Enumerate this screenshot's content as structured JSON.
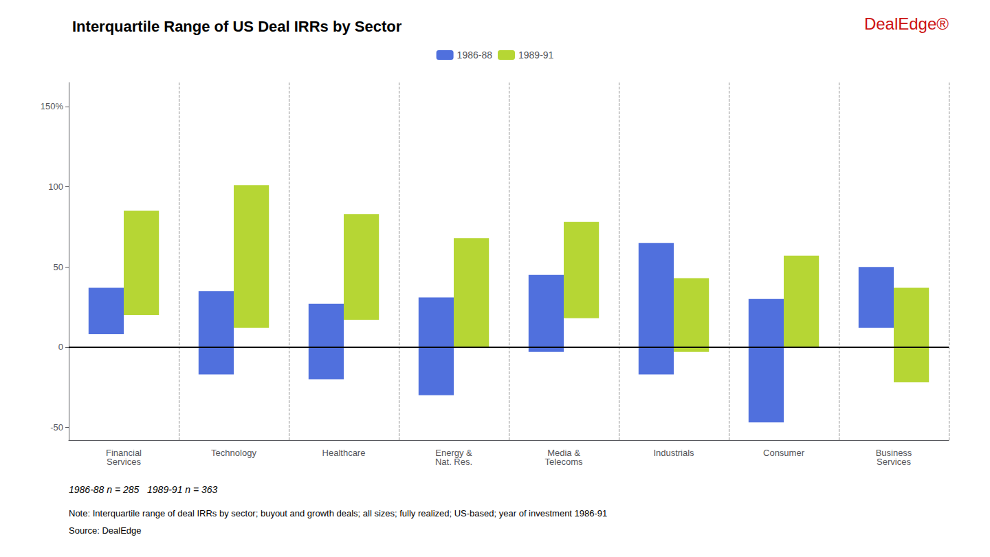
{
  "chart_data": {
    "type": "bar",
    "title": "Interquartile Range of US Deal IRRs by Sector",
    "categories": [
      "Financial\nServices",
      "Technology",
      "Healthcare",
      "Energy &\nNat. Res.",
      "Media &\nTelecoms",
      "Industrials",
      "Consumer",
      "Business\nServices"
    ],
    "series": [
      {
        "name": "1986-88",
        "values": [
          [
            8,
            37
          ],
          [
            -17,
            35
          ],
          [
            -20,
            27
          ],
          [
            -30,
            31
          ],
          [
            -3,
            45
          ],
          [
            -17,
            65
          ],
          [
            -47,
            30
          ],
          [
            12,
            50
          ]
        ]
      },
      {
        "name": "1989-91",
        "values": [
          [
            20,
            85
          ],
          [
            12,
            101
          ],
          [
            17,
            83
          ],
          [
            0,
            68
          ],
          [
            18,
            78
          ],
          [
            -3,
            43
          ],
          [
            0,
            57
          ],
          [
            -22,
            37
          ]
        ]
      }
    ],
    "ylim": [
      -58,
      165
    ],
    "yticks": [
      -50,
      0,
      50,
      100,
      {
        "value": 150,
        "label": "150%"
      }
    ],
    "grid": false,
    "annotations": [
      "DealEdge®",
      "1986-88 n = 285   1989-91 n = 363",
      "Note: Interquartile range of deal IRRs by sector; buyout and growth deals; all sizes; fully realized; US-based; year of investment 1986-91",
      "Source: DealEdge"
    ]
  }
}
